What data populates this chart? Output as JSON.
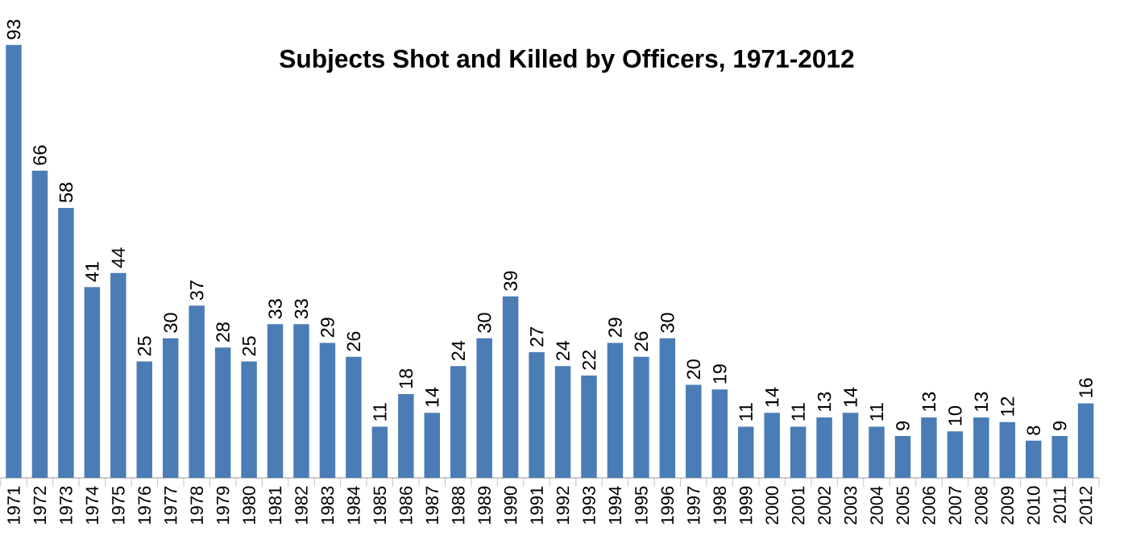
{
  "chart_data": {
    "type": "bar",
    "title": "Subjects Shot and Killed by Officers, 1971-2012",
    "categories": [
      "1971",
      "1972",
      "1973",
      "1974",
      "1975",
      "1976",
      "1977",
      "1978",
      "1979",
      "1980",
      "1981",
      "1982",
      "1983",
      "1984",
      "1985",
      "1986",
      "1987",
      "1988",
      "1989",
      "1990",
      "1991",
      "1992",
      "1993",
      "1994",
      "1995",
      "1996",
      "1997",
      "1998",
      "1999",
      "2000",
      "2001",
      "2002",
      "2003",
      "2004",
      "2005",
      "2006",
      "2007",
      "2008",
      "2009",
      "2010",
      "2011",
      "2012"
    ],
    "values": [
      93,
      66,
      58,
      41,
      44,
      25,
      30,
      37,
      28,
      25,
      33,
      33,
      29,
      26,
      11,
      18,
      14,
      24,
      30,
      39,
      27,
      24,
      22,
      29,
      26,
      30,
      20,
      19,
      11,
      14,
      11,
      13,
      14,
      11,
      9,
      13,
      10,
      13,
      12,
      8,
      9,
      16
    ],
    "color": "#4a7db6",
    "data_labels": true
  }
}
